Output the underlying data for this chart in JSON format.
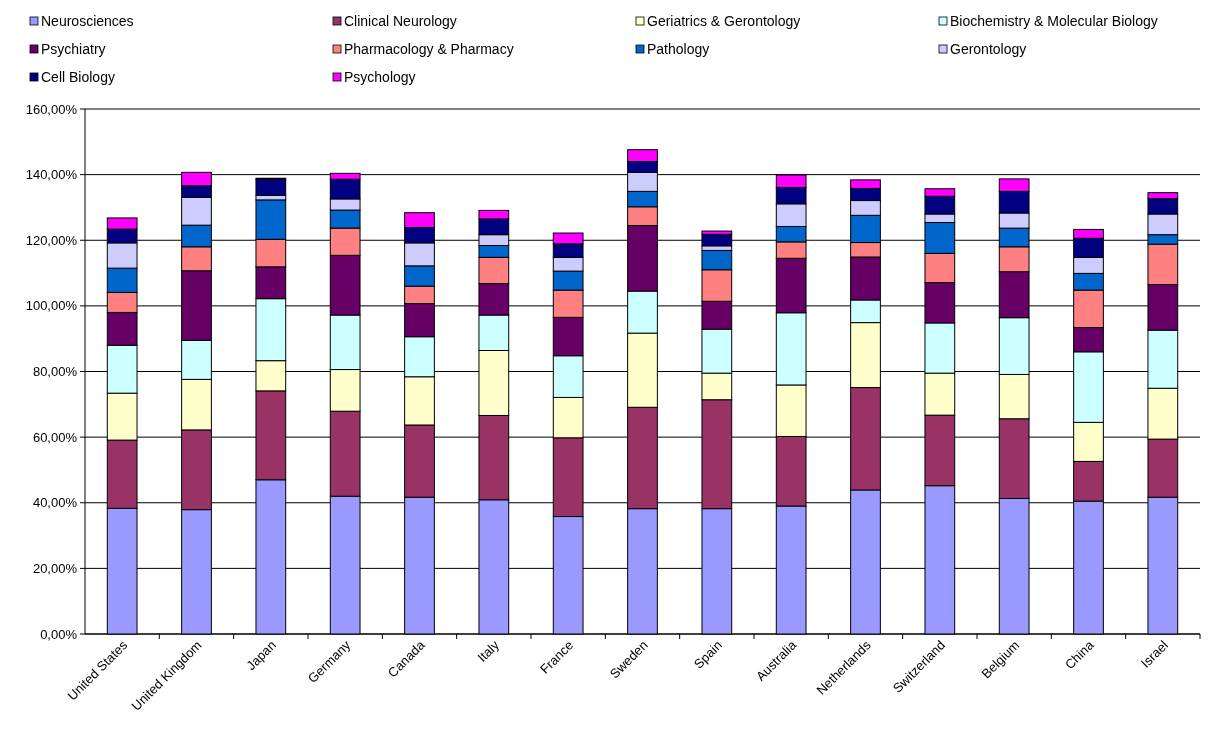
{
  "chart_data": {
    "type": "bar",
    "stacked": true,
    "legend": "top",
    "grid": "y",
    "categories": [
      "United States",
      "United Kingdom",
      "Japan",
      "Germany",
      "Canada",
      "Italy",
      "France",
      "Sweden",
      "Spain",
      "Australia",
      "Netherlands",
      "Switzerland",
      "Belgium",
      "China",
      "Israel"
    ],
    "ylim": [
      0,
      160
    ],
    "yticks": [
      {
        "value": 0,
        "label": "0,00%"
      },
      {
        "value": 20,
        "label": "20,00%"
      },
      {
        "value": 40,
        "label": "40,00%"
      },
      {
        "value": 60,
        "label": "60,00%"
      },
      {
        "value": 80,
        "label": "80,00%"
      },
      {
        "value": 100,
        "label": "100,00%"
      },
      {
        "value": 120,
        "label": "120,00%"
      },
      {
        "value": 140,
        "label": "140,00%"
      },
      {
        "value": 160,
        "label": "160,00%"
      }
    ],
    "series": [
      {
        "name": "Neurosciences",
        "color": "#9999ff",
        "values": [
          38.3,
          37.9,
          47.0,
          42.0,
          41.7,
          40.9,
          35.8,
          38.2,
          38.2,
          39.0,
          43.9,
          45.2,
          41.3,
          40.5,
          41.7
        ]
      },
      {
        "name": "Clinical Neurology",
        "color": "#993366",
        "values": [
          20.8,
          24.3,
          27.1,
          25.9,
          22.0,
          25.7,
          24.0,
          30.9,
          33.2,
          21.2,
          31.2,
          21.5,
          24.3,
          12.1,
          17.7
        ]
      },
      {
        "name": "Geriatrics & Gerontology",
        "color": "#ffffcc",
        "values": [
          14.3,
          15.4,
          9.2,
          12.7,
          14.7,
          19.8,
          12.3,
          22.6,
          8.1,
          15.7,
          19.8,
          12.8,
          13.5,
          11.9,
          15.5
        ]
      },
      {
        "name": "Biochemistry & Molecular Biology",
        "color": "#ccffff",
        "values": [
          14.6,
          11.9,
          18.9,
          16.6,
          12.2,
          10.8,
          12.7,
          12.8,
          13.4,
          22.0,
          6.9,
          15.3,
          17.3,
          21.5,
          17.7
        ]
      },
      {
        "name": "Psychiatry",
        "color": "#660066",
        "values": [
          10.0,
          21.2,
          9.7,
          18.2,
          10.1,
          9.6,
          11.7,
          20.0,
          8.5,
          16.6,
          13.1,
          12.3,
          14.0,
          7.4,
          13.9
        ]
      },
      {
        "name": "Pharmacology & Pharmacy",
        "color": "#ff8080",
        "values": [
          6.1,
          7.3,
          8.4,
          8.3,
          5.3,
          8.0,
          8.3,
          5.7,
          9.6,
          5.0,
          4.4,
          8.9,
          7.6,
          11.4,
          12.3
        ]
      },
      {
        "name": "Pathology",
        "color": "#0066cc",
        "values": [
          7.4,
          6.6,
          12.0,
          5.5,
          6.2,
          3.6,
          5.8,
          4.7,
          5.9,
          4.7,
          8.3,
          9.4,
          5.7,
          5.1,
          2.9
        ]
      },
      {
        "name": "Gerontology",
        "color": "#ccccff",
        "values": [
          7.7,
          8.5,
          1.4,
          3.4,
          7.0,
          3.3,
          4.2,
          5.8,
          1.4,
          6.9,
          4.5,
          2.6,
          4.6,
          4.9,
          6.3
        ]
      },
      {
        "name": "Cell Biology",
        "color": "#000080",
        "values": [
          4.2,
          3.5,
          4.9,
          6.0,
          4.7,
          4.8,
          4.1,
          3.3,
          3.5,
          5.0,
          3.7,
          5.4,
          6.6,
          5.8,
          4.7
        ]
      },
      {
        "name": "Psychology",
        "color": "#ff00ff",
        "values": [
          3.4,
          4.1,
          0.3,
          1.8,
          4.5,
          2.6,
          3.3,
          3.6,
          1.0,
          3.8,
          2.6,
          2.3,
          3.8,
          2.7,
          1.8
        ]
      }
    ]
  }
}
